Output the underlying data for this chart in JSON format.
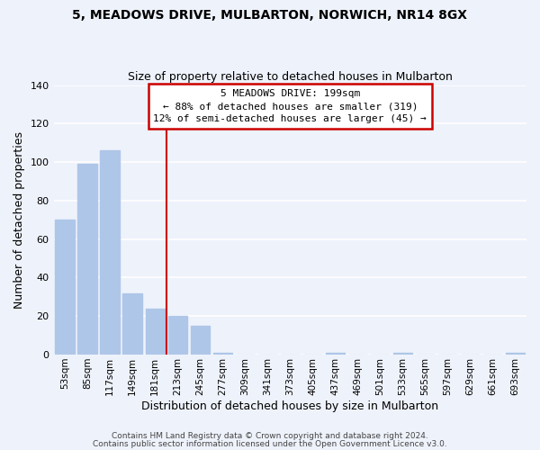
{
  "title": "5, MEADOWS DRIVE, MULBARTON, NORWICH, NR14 8GX",
  "subtitle": "Size of property relative to detached houses in Mulbarton",
  "xlabel": "Distribution of detached houses by size in Mulbarton",
  "ylabel": "Number of detached properties",
  "bar_labels": [
    "53sqm",
    "85sqm",
    "117sqm",
    "149sqm",
    "181sqm",
    "213sqm",
    "245sqm",
    "277sqm",
    "309sqm",
    "341sqm",
    "373sqm",
    "405sqm",
    "437sqm",
    "469sqm",
    "501sqm",
    "533sqm",
    "565sqm",
    "597sqm",
    "629sqm",
    "661sqm",
    "693sqm"
  ],
  "bar_values": [
    70,
    99,
    106,
    32,
    24,
    20,
    15,
    1,
    0,
    0,
    0,
    0,
    1,
    0,
    0,
    1,
    0,
    0,
    0,
    0,
    1
  ],
  "bar_color": "#aec6e8",
  "bar_edge_color": "#aec6e8",
  "vline_position": 4.5,
  "vline_color": "#cc0000",
  "ylim": [
    0,
    140
  ],
  "yticks": [
    0,
    20,
    40,
    60,
    80,
    100,
    120,
    140
  ],
  "annotation_title": "5 MEADOWS DRIVE: 199sqm",
  "annotation_line1": "← 88% of detached houses are smaller (319)",
  "annotation_line2": "12% of semi-detached houses are larger (45) →",
  "annotation_box_facecolor": "#ffffff",
  "annotation_box_edgecolor": "#cc0000",
  "footer1": "Contains HM Land Registry data © Crown copyright and database right 2024.",
  "footer2": "Contains public sector information licensed under the Open Government Licence v3.0.",
  "background_color": "#eef2fb",
  "grid_color": "#ffffff"
}
